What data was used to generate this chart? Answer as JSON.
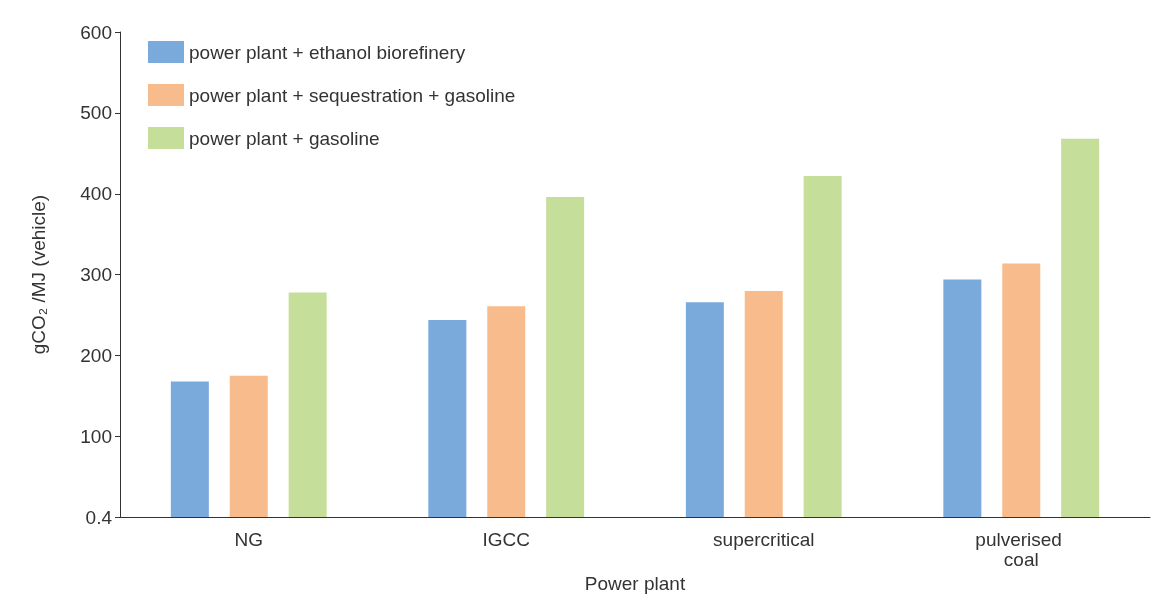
{
  "chart_data": {
    "type": "bar",
    "xlabel": "Power plant",
    "ylabel": "gCO₂ /MJ (vehicle)",
    "categories": [
      "NG",
      "IGCC",
      "supercritical",
      "pulverised coal"
    ],
    "series": [
      {
        "name": "power plant + ethanol biorefinery",
        "color": "#7aaadc",
        "values": [
          168,
          244,
          266,
          294
        ]
      },
      {
        "name": "power plant + sequestration + gasoline",
        "color": "#f8bc8c",
        "values": [
          175,
          261,
          280,
          314
        ]
      },
      {
        "name": "power plant + gasoline",
        "color": "#c5df9a",
        "values": [
          278,
          396,
          422,
          468
        ]
      }
    ],
    "ylim": [
      0.4,
      600
    ],
    "yticks": [
      0.4,
      100,
      200,
      300,
      400,
      500,
      600
    ],
    "grid": false,
    "legend": "top left"
  }
}
